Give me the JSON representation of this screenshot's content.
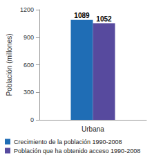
{
  "chart_data": {
    "type": "bar",
    "categories": [
      "Urbana"
    ],
    "series": [
      {
        "name": "Crecimiento de la población 1990-2008",
        "color": "#1f6db5",
        "values": [
          1089
        ]
      },
      {
        "name": "Población que ha obtenido acceso 1990-2008",
        "color": "#574a9e",
        "values": [
          1052
        ]
      }
    ],
    "y_label": "Población (millones)",
    "ylim": [
      0,
      1200
    ],
    "yticks": [
      0,
      300,
      600,
      900,
      1200
    ],
    "grid": false,
    "data_labels": true,
    "legend": "bottom"
  }
}
